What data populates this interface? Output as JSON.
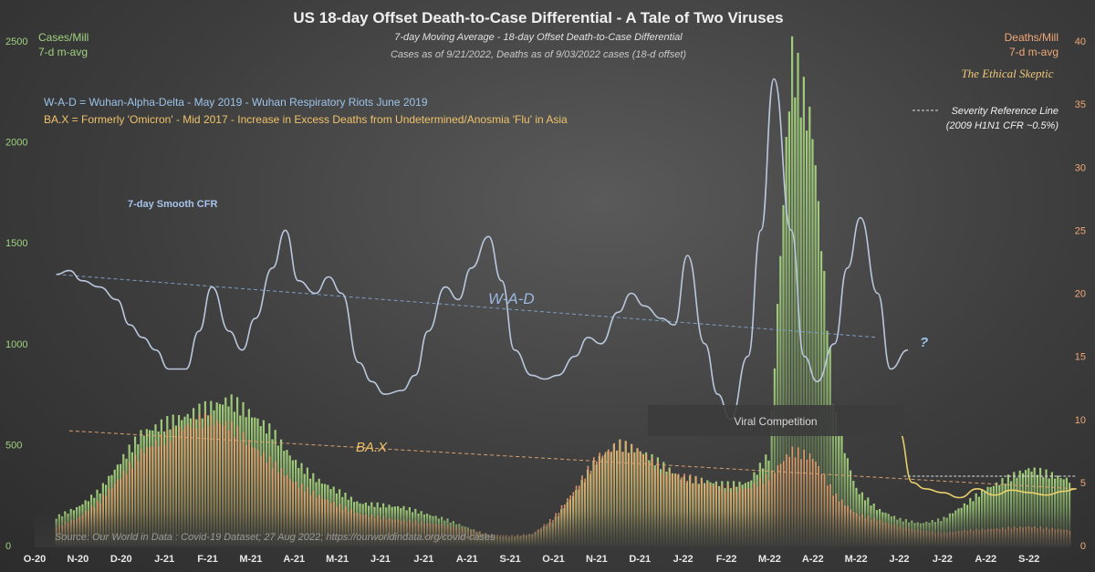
{
  "chart_data": {
    "type": "bar",
    "title": "US 18-day  Offset Death-to-Case  Differential  - A Tale of Two Viruses",
    "subtitle": "7-day Moving Average - 18-day Offset Death-to-Case Differential",
    "subtitle2": "Cases as of 9/21/2022,  Deaths as of 9/03/2022  cases (18-d offset)",
    "brand": "The Ethical Skeptic",
    "source": "Source: Our World in Data : Covid-19 Dataset; 27 Aug 2022; https://ourworldindata.org/covid-cases",
    "left_axis": {
      "label1": "Cases/Mill",
      "label2": "7-d m-avg",
      "ticks": [
        "0",
        "500",
        "1000",
        "1500",
        "2000",
        "2500"
      ],
      "ylim": [
        0,
        2500
      ]
    },
    "right_axis": {
      "label1": "Deaths/Mill",
      "label2": "7-d m-avg",
      "ticks": [
        "0",
        "5",
        "10",
        "15",
        "20",
        "25",
        "30",
        "35",
        "40"
      ],
      "ylim": [
        0,
        40
      ]
    },
    "x_ticks": [
      "O-20",
      "N-20",
      "D-20",
      "J-21",
      "F-21",
      "M-21",
      "A-21",
      "M-21",
      "J-21",
      "J-21",
      "A-21",
      "S-21",
      "O-21",
      "N-21",
      "D-21",
      "J-22",
      "F-22",
      "M-22",
      "A-22",
      "M-22",
      "J-22",
      "J-22",
      "A-22",
      "S-22"
    ],
    "legend_wad": "W-A-D  =  Wuhan-Alpha-Delta - May 2019 - Wuhan Respiratory Riots June 2019",
    "legend_bax": "BA.X  = Formerly  'Omicron' - Mid 2017 - Increase in Excess Deaths from Undetermined/Anosmia  'Flu' in Asia",
    "severity_label1": "Severity Reference Line",
    "severity_label2": "(2009 H1N1 CFR ~0.5%)",
    "smooth_label": "7-day Smooth CFR",
    "wad_label": "W-A-D",
    "bax_label": "BA.X",
    "question_label": "?",
    "viral_label": "Viral Competition",
    "colors": {
      "cases": "#8fc46a",
      "deaths": "#e8905a",
      "cfr_wad": "#b9c8dc",
      "cfr_bax": "#e8cf6a",
      "wad_trend": "#7f9ec4",
      "bax_trend": "#d9a070",
      "left_axis": "#9fd27f",
      "right_axis": "#f0a878"
    },
    "cases_series": {
      "name": "Cases/Mill 7-d m-avg",
      "x": [
        0,
        0.5,
        1,
        1.5,
        2,
        2.5,
        3,
        3.5,
        4,
        4.5,
        5,
        5.5,
        6,
        6.5,
        7,
        7.5,
        8,
        8.5,
        9,
        9.5,
        10,
        10.5,
        11,
        11.5,
        12,
        12.5,
        13,
        13.5,
        14,
        14.5,
        15,
        15.5,
        16,
        16.5,
        17,
        17.5,
        18,
        18.5,
        19,
        19.5,
        20,
        20.5,
        21,
        21.5,
        22,
        22.5,
        23.5
      ],
      "values": [
        140,
        190,
        270,
        420,
        560,
        600,
        640,
        680,
        720,
        650,
        560,
        420,
        330,
        270,
        210,
        200,
        190,
        160,
        130,
        90,
        50,
        40,
        55,
        120,
        260,
        420,
        500,
        470,
        400,
        330,
        320,
        300,
        310,
        450,
        2420,
        2050,
        650,
        280,
        180,
        130,
        110,
        130,
        200,
        280,
        330,
        380,
        320
      ]
    },
    "deaths_series": {
      "name": "Deaths/Mill 7-d m-avg",
      "x": [
        0,
        0.5,
        1,
        1.5,
        2,
        2.5,
        3,
        3.5,
        4,
        4.5,
        5,
        5.5,
        6,
        6.5,
        7,
        7.5,
        8,
        8.5,
        9,
        9.5,
        10,
        10.5,
        11,
        11.5,
        12,
        12.5,
        13,
        13.5,
        14,
        14.5,
        15,
        15.5,
        16,
        16.5,
        17,
        17.5,
        18,
        18.5,
        19,
        19.5,
        20,
        20.5,
        21,
        21.5,
        22,
        22.5,
        23.5
      ],
      "values": [
        1.5,
        2.2,
        3.5,
        5.5,
        7.5,
        8.5,
        9.5,
        10,
        9.5,
        8,
        6.5,
        5,
        4,
        3.2,
        2.5,
        2.2,
        2.0,
        1.8,
        1.6,
        1.3,
        0.9,
        0.8,
        0.9,
        2.2,
        4.5,
        7.0,
        8.0,
        7.5,
        6.0,
        5.5,
        5.0,
        4.5,
        4.5,
        5.5,
        7.5,
        7.0,
        4.0,
        2.5,
        2.0,
        1.5,
        1.2,
        1.0,
        1.2,
        1.3,
        1.4,
        1.5,
        1.2
      ]
    },
    "cfr_wad": {
      "name": "W-A-D",
      "x": [
        0,
        0.3,
        0.6,
        1,
        1.4,
        1.7,
        2,
        2.3,
        2.6,
        3,
        3.3,
        3.6,
        4,
        4.3,
        4.6,
        5,
        5.3,
        5.6,
        6,
        6.3,
        6.6,
        7,
        7.3,
        7.6,
        8,
        8.3,
        8.6,
        9,
        9.3,
        9.6,
        10,
        10.3,
        10.6,
        11,
        11.3,
        11.6,
        12,
        12.3,
        12.6,
        13,
        13.3,
        13.6,
        14,
        14.3,
        14.6,
        15,
        15.3,
        15.6,
        16,
        16.3,
        16.6,
        17,
        17.3,
        17.6,
        18,
        18.3,
        18.6,
        19,
        19.3,
        19.7
      ],
      "values": [
        21.5,
        21.8,
        21,
        20.5,
        19.5,
        17.5,
        16.5,
        15.5,
        14,
        14,
        17,
        20.5,
        17,
        15.5,
        18,
        22,
        25,
        21,
        20,
        21.3,
        20,
        14.5,
        13,
        12,
        12.3,
        13.5,
        17,
        20.5,
        19.5,
        22,
        24.5,
        21,
        15.5,
        13.5,
        13.2,
        13.5,
        15,
        16.5,
        16,
        18.5,
        20,
        19,
        18,
        17.5,
        23,
        16,
        12,
        10,
        15,
        25,
        37,
        25,
        15,
        13,
        16,
        22,
        26,
        20,
        14,
        15.5
      ]
    },
    "cfr_bax": {
      "name": "BA.X",
      "x": [
        19.5,
        19.8,
        20.1,
        20.5,
        20.9,
        21.3,
        21.7,
        22.1,
        22.5,
        22.9,
        23.3,
        23.6
      ],
      "values": [
        9,
        5,
        4.5,
        4.2,
        3.8,
        4.5,
        4.0,
        4.4,
        4.2,
        4.0,
        4.3,
        4.5
      ]
    },
    "severity_ref": 5.5,
    "wad_trend": {
      "x": [
        0,
        19
      ],
      "values": [
        21.5,
        16.5
      ]
    },
    "bax_trend": {
      "x": [
        0.3,
        23.6
      ],
      "values": [
        9.1,
        4.5
      ]
    },
    "grid": false,
    "legend_position": "top-left"
  }
}
